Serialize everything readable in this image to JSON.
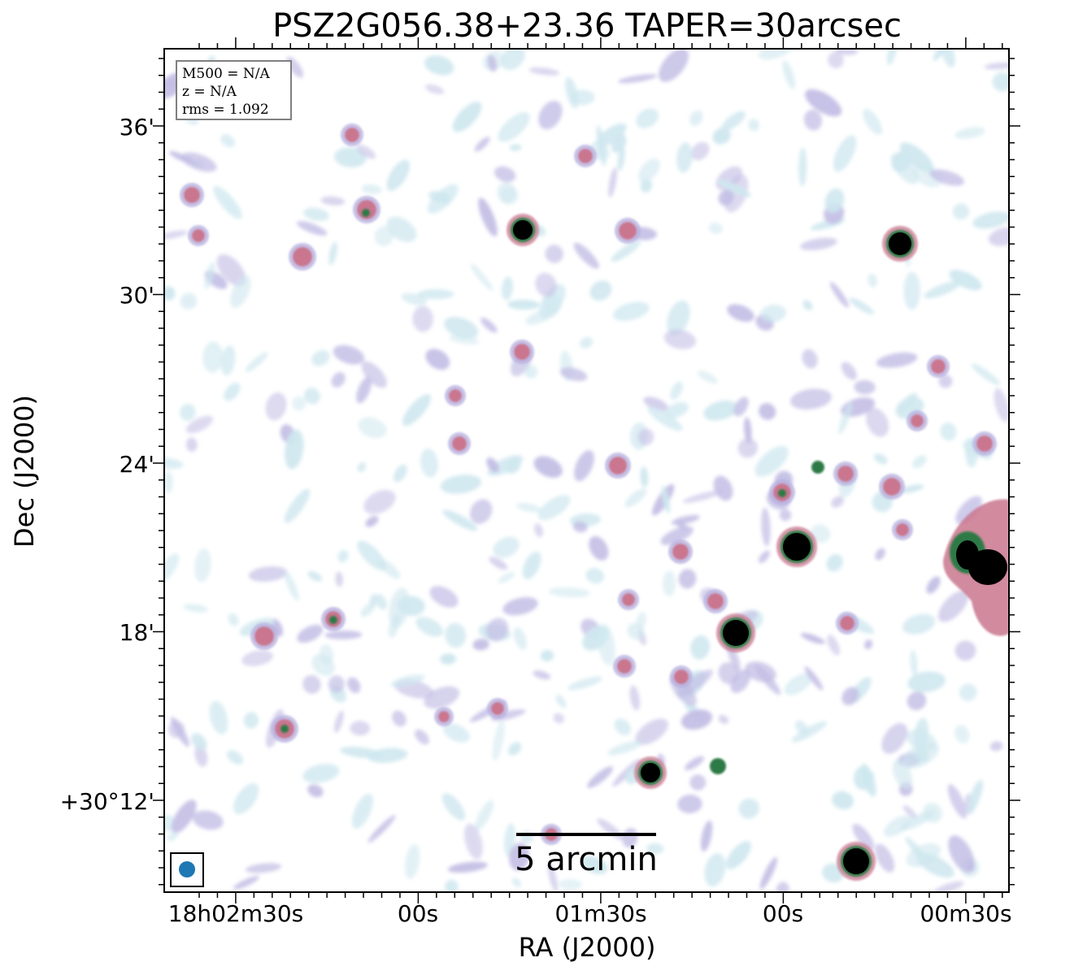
{
  "title": "PSZ2G056.38+23.36 TAPER=30arcsec",
  "axes": {
    "x_label": "RA (J2000)",
    "y_label": "Dec (J2000)",
    "x_ticks": [
      "18h02m30s",
      "00s",
      "01m30s",
      "00s",
      "00m30s"
    ],
    "y_ticks": [
      "36'",
      "30'",
      "24'",
      "18'",
      "+30°12'"
    ]
  },
  "info_box": {
    "mass": "M500 = N/A",
    "redshift": "z = N/A",
    "rms": "rms = 1.092"
  },
  "scale_bar": {
    "label": "5 arcmin"
  },
  "colors": {
    "background": "#ffffff",
    "faint_emission": "#c6e3ec",
    "moderate_emission": "#b8b2e0",
    "bright_emission": "#c9768e",
    "very_bright_emission": "#2f7a47",
    "saturated_source": "#000000",
    "beam_marker": "#1f77b4"
  },
  "beam": {
    "shape": "ellipse"
  }
}
